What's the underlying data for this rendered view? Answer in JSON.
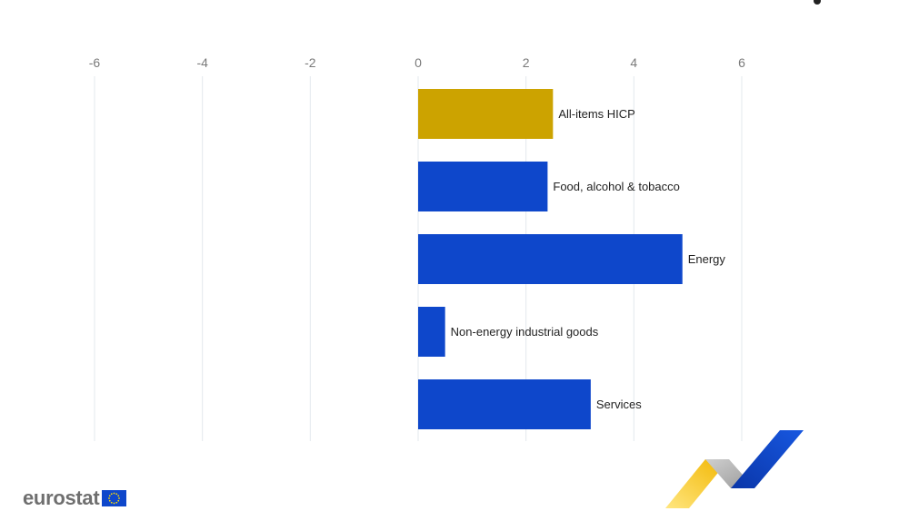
{
  "chart_data": {
    "type": "bar",
    "orientation": "horizontal",
    "categories": [
      "All-items HICP",
      "Food, alcohol & tobacco",
      "Energy",
      "Non-energy industrial goods",
      "Services"
    ],
    "values": [
      2.5,
      2.4,
      4.9,
      0.5,
      3.2
    ],
    "bar_colors": [
      "#cca300",
      "#0e47cb",
      "#0e47cb",
      "#0e47cb",
      "#0e47cb"
    ],
    "xlim": [
      -6,
      6
    ],
    "xticks": [
      -6,
      -4,
      -2,
      0,
      2,
      4,
      6
    ],
    "xtick_labels": [
      "-6",
      "-4",
      "-2",
      "0",
      "2",
      "4",
      "6"
    ],
    "axis_position": "top",
    "grid": true,
    "title": "",
    "xlabel": "",
    "ylabel": ""
  },
  "branding": {
    "logo_text": "eurostat",
    "logo_color": "#6f6f6f",
    "flag_color": "#0e47cb"
  }
}
